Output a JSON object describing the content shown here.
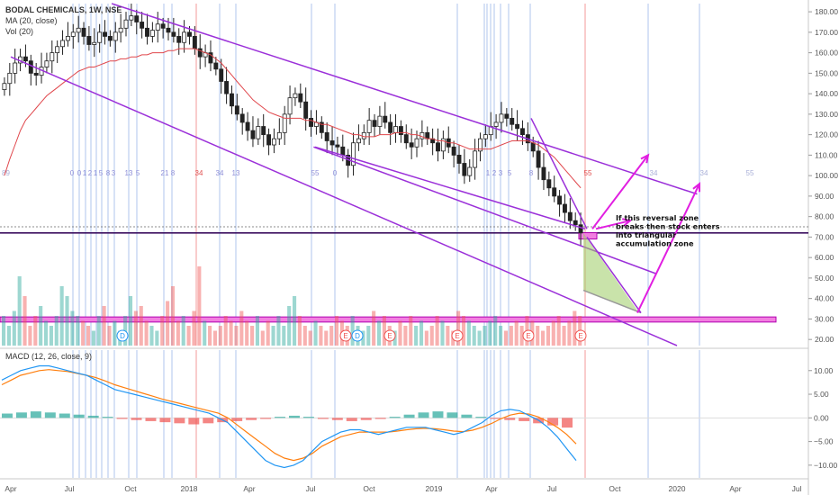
{
  "legend": {
    "symbol": "BODAL CHEMICALS, 1W, NSE",
    "ma": "MA (20, close)",
    "vol": "Vol (20)",
    "macd": "MACD (12, 26, close, 9)"
  },
  "colors": {
    "up": "#26a69a",
    "down": "#ef5350",
    "channel": "#9b30d9",
    "arrow": "#e11ee1",
    "ma": "#e0474c",
    "macd_line": "#2196f3",
    "signal_line": "#ff7f0e",
    "zone_fill": "#f27ee0",
    "triangle_fill": "#9ccc65"
  },
  "annotation": "If this reversal zone breaks then stock enters into triangular accumulation zone",
  "chart_data": [
    {
      "type": "candlestick",
      "title": "BODAL CHEMICALS, 1W, NSE",
      "x_ticks": [
        "Apr",
        "Jul",
        "Oct",
        "2018",
        "Apr",
        "Jul",
        "Oct",
        "2019",
        "Apr",
        "Jul",
        "Oct",
        "2020",
        "Apr",
        "Jul"
      ],
      "y_ticks": [
        180,
        170,
        160,
        150,
        140,
        130,
        120,
        110,
        100,
        90,
        80,
        70,
        60,
        50,
        40,
        30,
        20
      ],
      "ylim": [
        17,
        184
      ],
      "ylabel": "",
      "close_approx": [
        145,
        150,
        155,
        158,
        156,
        150,
        149,
        153,
        156,
        160,
        163,
        166,
        168,
        170,
        172,
        168,
        164,
        165,
        170,
        168,
        166,
        170,
        172,
        176,
        178,
        175,
        172,
        168,
        171,
        174,
        172,
        170,
        168,
        165,
        170,
        168,
        162,
        158,
        160,
        155,
        152,
        146,
        140,
        134,
        130,
        126,
        122,
        118,
        124,
        120,
        115,
        118,
        121,
        130,
        138,
        140,
        136,
        128,
        124,
        126,
        121,
        117,
        115,
        114,
        110,
        105,
        116,
        118,
        121,
        127,
        124,
        129,
        126,
        121,
        124,
        120,
        116,
        114,
        118,
        121,
        118,
        116,
        112,
        118,
        114,
        110,
        106,
        100,
        104,
        112,
        118,
        120,
        124,
        126,
        130,
        128,
        125,
        123,
        120,
        116,
        112,
        104,
        98,
        94,
        90,
        86,
        82,
        78,
        76,
        72
      ],
      "ma20_approx": [
        100,
        108,
        115,
        122,
        127,
        130,
        133,
        136,
        139,
        141,
        143,
        145,
        147,
        149,
        151,
        152,
        153,
        153,
        154,
        155,
        156,
        156,
        157,
        157,
        158,
        158,
        159,
        159,
        160,
        160,
        160,
        161,
        161,
        162,
        162,
        162,
        162,
        161,
        160,
        159,
        157,
        155,
        152,
        149,
        146,
        143,
        140,
        137,
        135,
        133,
        131,
        130,
        129,
        128,
        128,
        128,
        128,
        127,
        127,
        126,
        125,
        125,
        124,
        123,
        122,
        121,
        120,
        120,
        119,
        119,
        119,
        120,
        120,
        120,
        121,
        121,
        121,
        120,
        120,
        119,
        118,
        118,
        117,
        117,
        116,
        116,
        115,
        114,
        113,
        113,
        113,
        113,
        113,
        114,
        115,
        116,
        117,
        117,
        117,
        117,
        116,
        115,
        113,
        111,
        109,
        106,
        103,
        100,
        97,
        94
      ],
      "horizontal_line": 72,
      "zone_bands": [
        [
          70,
          73
        ],
        [
          28.5,
          31
        ]
      ],
      "channel_lines": [
        {
          "from": [
            "Apr 2017",
            158
          ],
          "to": [
            "Jan 2020",
            17
          ]
        },
        {
          "from": [
            "Sep 2017",
            184
          ],
          "to": [
            "Feb 2020",
            91
          ]
        },
        {
          "from": [
            "Jul 2018",
            114
          ],
          "to": [
            "Dec 2019",
            52
          ]
        }
      ],
      "fib_labels_purple": [
        "0",
        "0",
        "1",
        "2",
        "1",
        "5",
        "8",
        "3",
        "13",
        "5",
        "21",
        "8",
        "34",
        "13",
        "55",
        "0",
        "1",
        "2",
        "3",
        "5",
        "8"
      ],
      "fib_labels_red": [
        "34",
        "55"
      ],
      "fib_labels_future": [
        "34",
        "34",
        "55"
      ],
      "fib_label_left": "89",
      "event_markers": [
        "D",
        "E",
        "D",
        "E",
        "E",
        "E",
        "E",
        "E"
      ]
    },
    {
      "type": "bar",
      "title": "Vol (20)",
      "values_relative": [
        0.3,
        0.2,
        0.35,
        0.7,
        0.5,
        0.2,
        0.3,
        0.4,
        0.25,
        0.2,
        0.3,
        0.6,
        0.5,
        0.35,
        0.3,
        0.25,
        0.2,
        0.15,
        0.3,
        0.4,
        0.2,
        0.25,
        0.15,
        0.3,
        0.5,
        0.35,
        0.4,
        0.25,
        0.2,
        0.15,
        0.3,
        0.45,
        0.6,
        0.25,
        0.3,
        0.2,
        0.35,
        0.8,
        0.25,
        0.2,
        0.15,
        0.2,
        0.3,
        0.25,
        0.2,
        0.35,
        0.25,
        0.2,
        0.3,
        0.15,
        0.25,
        0.2,
        0.3,
        0.2,
        0.4,
        0.5,
        0.3,
        0.2,
        0.15,
        0.25,
        0.2,
        0.15,
        0.2,
        0.3,
        0.25,
        0.2,
        0.3,
        0.2,
        0.15,
        0.2,
        0.35,
        0.25,
        0.3,
        0.2,
        0.15,
        0.25,
        0.2,
        0.3,
        0.2,
        0.25,
        0.15,
        0.2,
        0.3,
        0.25,
        0.2,
        0.15,
        0.35,
        0.3,
        0.25,
        0.2,
        0.15,
        0.2,
        0.25,
        0.3,
        0.2,
        0.15,
        0.2,
        0.25,
        0.2,
        0.3,
        0.25,
        0.2,
        0.15,
        0.2,
        0.25,
        0.3,
        0.2,
        0.25,
        0.35,
        0.3
      ]
    },
    {
      "type": "line",
      "title": "MACD (12, 26, close, 9)",
      "y_ticks": [
        10,
        5,
        0,
        -5,
        -10
      ],
      "ylim": [
        -12.5,
        13
      ],
      "series": [
        {
          "name": "MACD",
          "values": [
            8,
            9,
            10,
            10.5,
            11,
            11,
            10.5,
            10,
            9.5,
            9,
            8,
            7,
            6,
            5.5,
            5,
            4.5,
            4,
            3.5,
            3,
            2.5,
            2,
            1.5,
            1,
            0,
            -1,
            -3,
            -5,
            -7,
            -9,
            -10,
            -10.5,
            -10,
            -9,
            -7,
            -5,
            -4,
            -3,
            -2.5,
            -2.5,
            -3,
            -3.5,
            -3,
            -2.5,
            -2,
            -2,
            -2,
            -2.5,
            -3,
            -3.5,
            -3,
            -2,
            -1,
            0.5,
            1.5,
            1.8,
            1.5,
            0.5,
            -0.5,
            -2,
            -4,
            -6.5,
            -9
          ]
        },
        {
          "name": "Signal",
          "values": [
            7,
            8,
            9,
            9.5,
            10,
            10.2,
            10,
            9.8,
            9.4,
            9,
            8.5,
            7.8,
            7,
            6.4,
            5.8,
            5.2,
            4.6,
            4,
            3.5,
            3,
            2.5,
            2,
            1.5,
            1,
            0,
            -1.5,
            -3,
            -4.5,
            -6,
            -7.5,
            -8.5,
            -9,
            -8.5,
            -7.5,
            -6,
            -5,
            -4,
            -3.5,
            -3,
            -3,
            -3,
            -3,
            -2.8,
            -2.5,
            -2.3,
            -2.2,
            -2.3,
            -2.5,
            -2.8,
            -2.9,
            -2.6,
            -2,
            -1.2,
            -0.2,
            0.6,
            1,
            0.8,
            0.2,
            -0.8,
            -2,
            -3.5,
            -5.5
          ]
        }
      ],
      "histogram_relative": [
        0.4,
        0.5,
        0.6,
        0.5,
        0.4,
        0.3,
        0.2,
        0.1,
        -0.1,
        -0.2,
        -0.3,
        -0.4,
        -0.5,
        -0.6,
        -0.5,
        -0.4,
        -0.3,
        -0.2,
        -0.1,
        0.1,
        0.2,
        0.1,
        -0.1,
        -0.2,
        -0.3,
        -0.2,
        -0.1,
        0.1,
        0.3,
        0.5,
        0.6,
        0.5,
        0.3,
        0.1,
        -0.1,
        -0.2,
        -0.3,
        -0.5,
        -0.7,
        -0.9
      ]
    }
  ]
}
